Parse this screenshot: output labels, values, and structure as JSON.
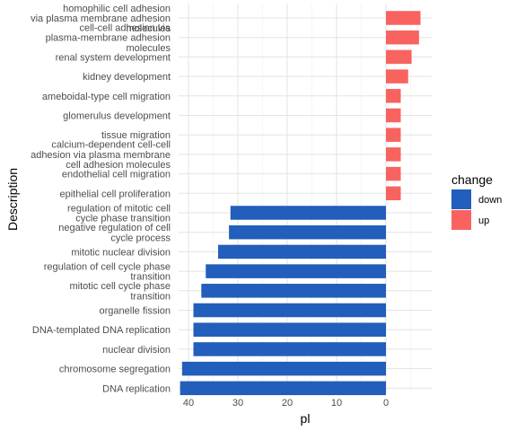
{
  "chart_data": {
    "type": "bar",
    "orientation": "horizontal",
    "x_reversed": true,
    "xlabel": "pl",
    "ylabel": "Description",
    "xlim": [
      42,
      -9
    ],
    "xticks": [
      40,
      30,
      20,
      10,
      0
    ],
    "grid": true,
    "legend": {
      "title": "change",
      "placement": "right",
      "entries": [
        {
          "name": "down",
          "color": "#225EBB"
        },
        {
          "name": "up",
          "color": "#F8635F"
        }
      ]
    },
    "categories": [
      {
        "lines": [
          "homophilic cell adhesion",
          "via plasma membrane adhesion",
          "molecules"
        ],
        "value": -7.0,
        "change": "up"
      },
      {
        "lines": [
          "cell-cell adhesion via",
          "plasma-membrane adhesion",
          "molecules"
        ],
        "value": -6.7,
        "change": "up"
      },
      {
        "lines": [
          "renal system development"
        ],
        "value": -5.2,
        "change": "up"
      },
      {
        "lines": [
          "kidney development"
        ],
        "value": -4.5,
        "change": "up"
      },
      {
        "lines": [
          "ameboidal-type cell migration"
        ],
        "value": -3.0,
        "change": "up"
      },
      {
        "lines": [
          "glomerulus development"
        ],
        "value": -3.0,
        "change": "up"
      },
      {
        "lines": [
          "tissue migration"
        ],
        "value": -3.0,
        "change": "up"
      },
      {
        "lines": [
          "calcium-dependent cell-cell",
          "adhesion via plasma membrane",
          "cell adhesion molecules"
        ],
        "value": -3.0,
        "change": "up"
      },
      {
        "lines": [
          "endothelial cell migration"
        ],
        "value": -3.0,
        "change": "up"
      },
      {
        "lines": [
          "epithelial cell proliferation"
        ],
        "value": -3.0,
        "change": "up"
      },
      {
        "lines": [
          "regulation of mitotic cell",
          "cycle phase transition"
        ],
        "value": 31.5,
        "change": "down"
      },
      {
        "lines": [
          "negative regulation of cell",
          "cycle process"
        ],
        "value": 31.8,
        "change": "down"
      },
      {
        "lines": [
          "mitotic nuclear division"
        ],
        "value": 34.0,
        "change": "down"
      },
      {
        "lines": [
          "regulation of cell cycle phase",
          "transition"
        ],
        "value": 36.5,
        "change": "down"
      },
      {
        "lines": [
          "mitotic cell cycle phase",
          "transition"
        ],
        "value": 37.4,
        "change": "down"
      },
      {
        "lines": [
          "organelle fission"
        ],
        "value": 39.0,
        "change": "down"
      },
      {
        "lines": [
          "DNA-templated DNA replication"
        ],
        "value": 39.0,
        "change": "down"
      },
      {
        "lines": [
          "nuclear division"
        ],
        "value": 39.0,
        "change": "down"
      },
      {
        "lines": [
          "chromosome segregation"
        ],
        "value": 41.3,
        "change": "down"
      },
      {
        "lines": [
          "DNA replication"
        ],
        "value": 41.7,
        "change": "down"
      }
    ]
  }
}
